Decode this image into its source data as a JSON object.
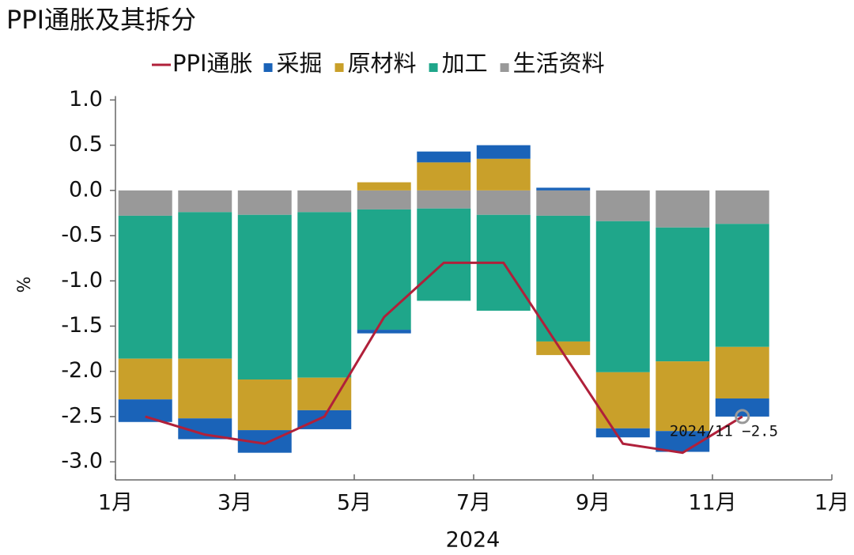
{
  "chart_data": {
    "type": "stacked-bar-line",
    "title": "PPI通胀及其拆分",
    "xlabel": "2024",
    "ylabel": "%",
    "x": [
      0.5,
      1.5,
      2.5,
      3.5,
      4.5,
      5.5,
      6.5,
      7.5,
      8.5,
      9.5,
      10.5
    ],
    "xlim": [
      0,
      12
    ],
    "xticks": [
      {
        "value": 0,
        "label": "1月"
      },
      {
        "value": 2,
        "label": "3月"
      },
      {
        "value": 4,
        "label": "5月"
      },
      {
        "value": 6,
        "label": "7月"
      },
      {
        "value": 8,
        "label": "9月"
      },
      {
        "value": 10,
        "label": "11月"
      },
      {
        "value": 12,
        "label": "1月"
      }
    ],
    "ylim": [
      -3.2,
      1.1
    ],
    "yticks": [
      {
        "value": 1,
        "label": "1.0"
      },
      0.5,
      {
        "value": 0,
        "label": "0.0"
      },
      -0.5,
      {
        "value": -1,
        "label": "-1.0"
      },
      -1.5,
      {
        "value": -2,
        "label": "-2.0"
      },
      -2.5,
      {
        "value": -3,
        "label": "-3.0"
      }
    ],
    "line": {
      "name": "PPI通胀",
      "color": "#b0203a",
      "values": [
        -2.5,
        -2.7,
        -2.8,
        -2.5,
        -1.4,
        -0.8,
        -0.8,
        -1.8,
        -2.8,
        -2.9,
        -2.5
      ]
    },
    "series": [
      {
        "name": "采掘",
        "color": "#1a63b8",
        "values": [
          -0.25,
          -0.23,
          -0.25,
          -0.21,
          -0.04,
          0.12,
          0.15,
          0.03,
          -0.1,
          -0.23,
          -0.2
        ]
      },
      {
        "name": "原材料",
        "color": "#c9a02a",
        "values": [
          -0.45,
          -0.66,
          -0.56,
          -0.36,
          0.09,
          0.31,
          0.35,
          -0.15,
          -0.62,
          -0.77,
          -0.57
        ]
      },
      {
        "name": "加工",
        "color": "#1fa68a",
        "values": [
          -1.58,
          -1.62,
          -1.82,
          -1.83,
          -1.33,
          -1.02,
          -1.06,
          -1.39,
          -1.67,
          -1.48,
          -1.36
        ]
      },
      {
        "name": "生活资料",
        "color": "#999999",
        "values": [
          -0.28,
          -0.24,
          -0.27,
          -0.24,
          -0.21,
          -0.2,
          -0.27,
          -0.28,
          -0.34,
          -0.41,
          -0.37
        ]
      }
    ],
    "annotation": "2024/11 −2.5"
  }
}
